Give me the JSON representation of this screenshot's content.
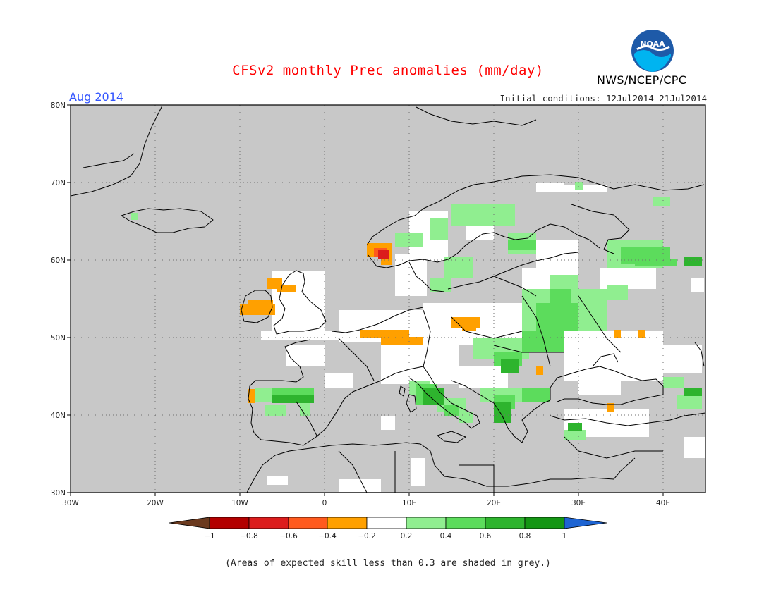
{
  "header": {
    "title": "CFSv2 monthly Prec anomalies (mm/day)",
    "month": "Aug 2014",
    "initial_conditions": "Initial conditions: 12Jul2014–21Jul2014",
    "organization": "NWS/NCEP/CPC",
    "logo_text": "NOAA"
  },
  "map": {
    "lat_labels": [
      "80N",
      "70N",
      "60N",
      "50N",
      "40N",
      "30N"
    ],
    "lon_labels": [
      "30W",
      "20W",
      "10W",
      "0",
      "10E",
      "20E",
      "30E",
      "40E"
    ],
    "extent": {
      "lon_min": -30,
      "lon_max": 45,
      "lat_min": 30,
      "lat_max": 80
    },
    "background_color": "#c8c8c8"
  },
  "legend": {
    "tick_labels": [
      "−1",
      "−0.8",
      "−0.6",
      "−0.4",
      "−0.2",
      "0.2",
      "0.4",
      "0.6",
      "0.8",
      "1"
    ],
    "colors": [
      "#6b3a1f",
      "#b30000",
      "#dc1c1c",
      "#ff5a1e",
      "#ffa000",
      "#ffffff",
      "#90ee90",
      "#5cdc5c",
      "#2eb42e",
      "#149614",
      "#1e64d2"
    ]
  },
  "footnote": "(Areas of expected skill less than 0.3 are shaded in grey.)"
}
